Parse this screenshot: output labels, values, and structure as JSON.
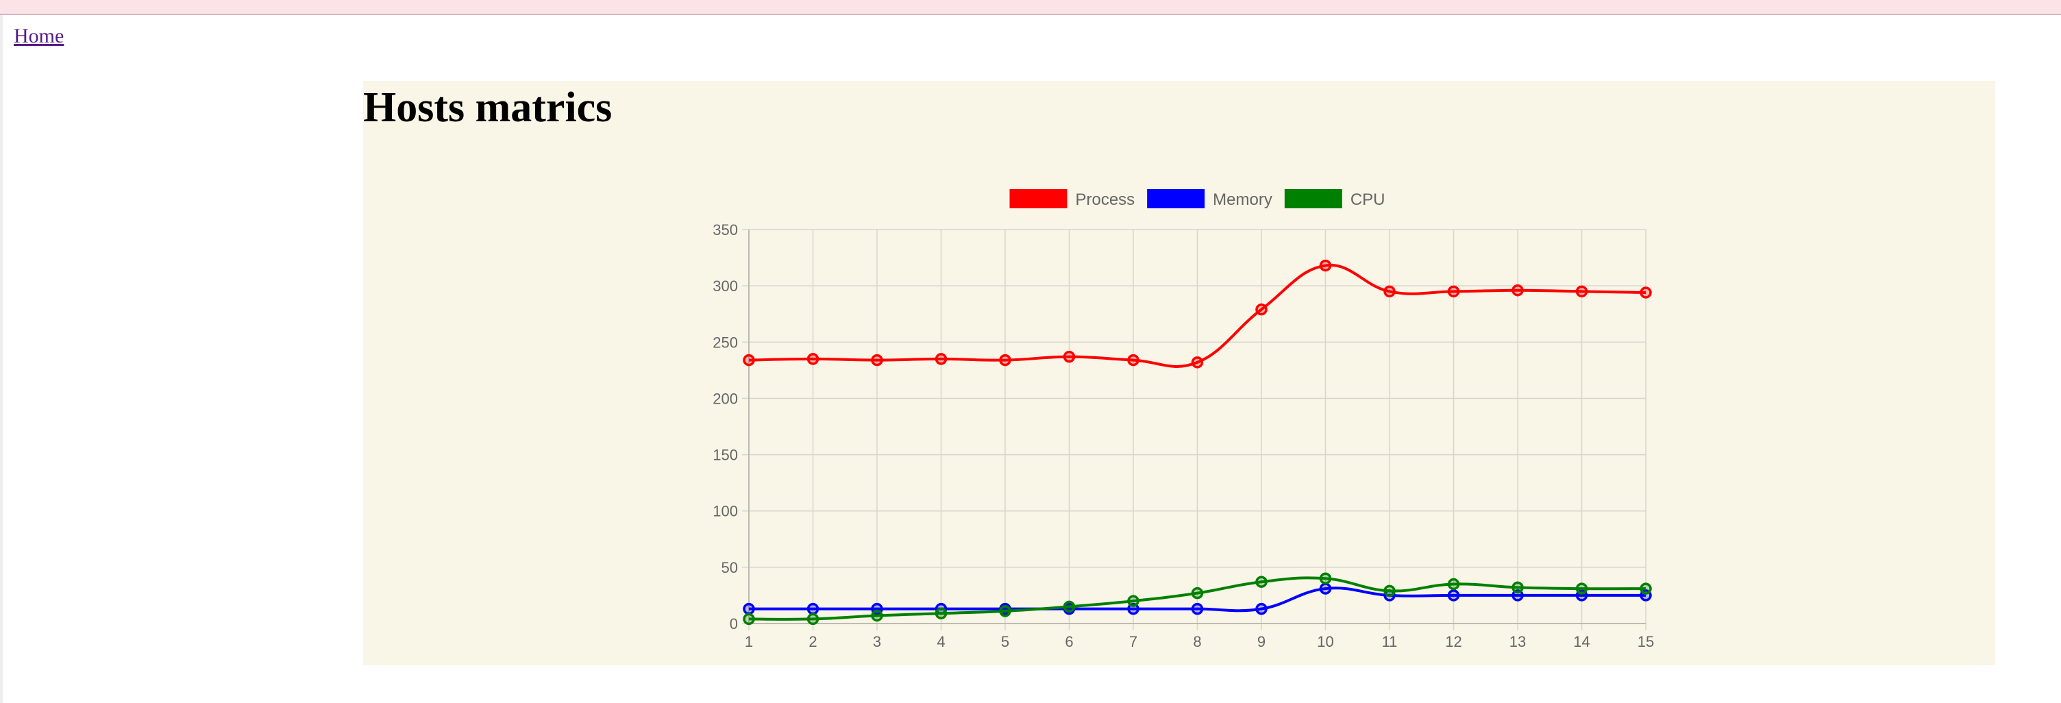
{
  "nav": {
    "home_label": "Home"
  },
  "panel": {
    "title": "Hosts matrics"
  },
  "chart_data": {
    "type": "line",
    "title": "",
    "xlabel": "",
    "ylabel": "",
    "x": [
      1,
      2,
      3,
      4,
      5,
      6,
      7,
      8,
      9,
      10,
      11,
      12,
      13,
      14,
      15
    ],
    "ylim": [
      0,
      350
    ],
    "yticks": [
      0,
      50,
      100,
      150,
      200,
      250,
      300,
      350
    ],
    "grid": true,
    "legend_position": "top",
    "series": [
      {
        "name": "Process",
        "color": "#ff0000",
        "values": [
          234,
          235,
          234,
          235,
          234,
          237,
          234,
          232,
          279,
          318,
          295,
          295,
          296,
          295,
          294
        ]
      },
      {
        "name": "Memory",
        "color": "#0000ff",
        "values": [
          13,
          13,
          13,
          13,
          13,
          13,
          13,
          13,
          13,
          31,
          25,
          25,
          25,
          25,
          25
        ]
      },
      {
        "name": "CPU",
        "color": "#008000",
        "values": [
          4,
          4,
          7,
          9,
          11,
          15,
          20,
          27,
          37,
          40,
          29,
          35,
          32,
          31,
          31
        ]
      }
    ]
  }
}
